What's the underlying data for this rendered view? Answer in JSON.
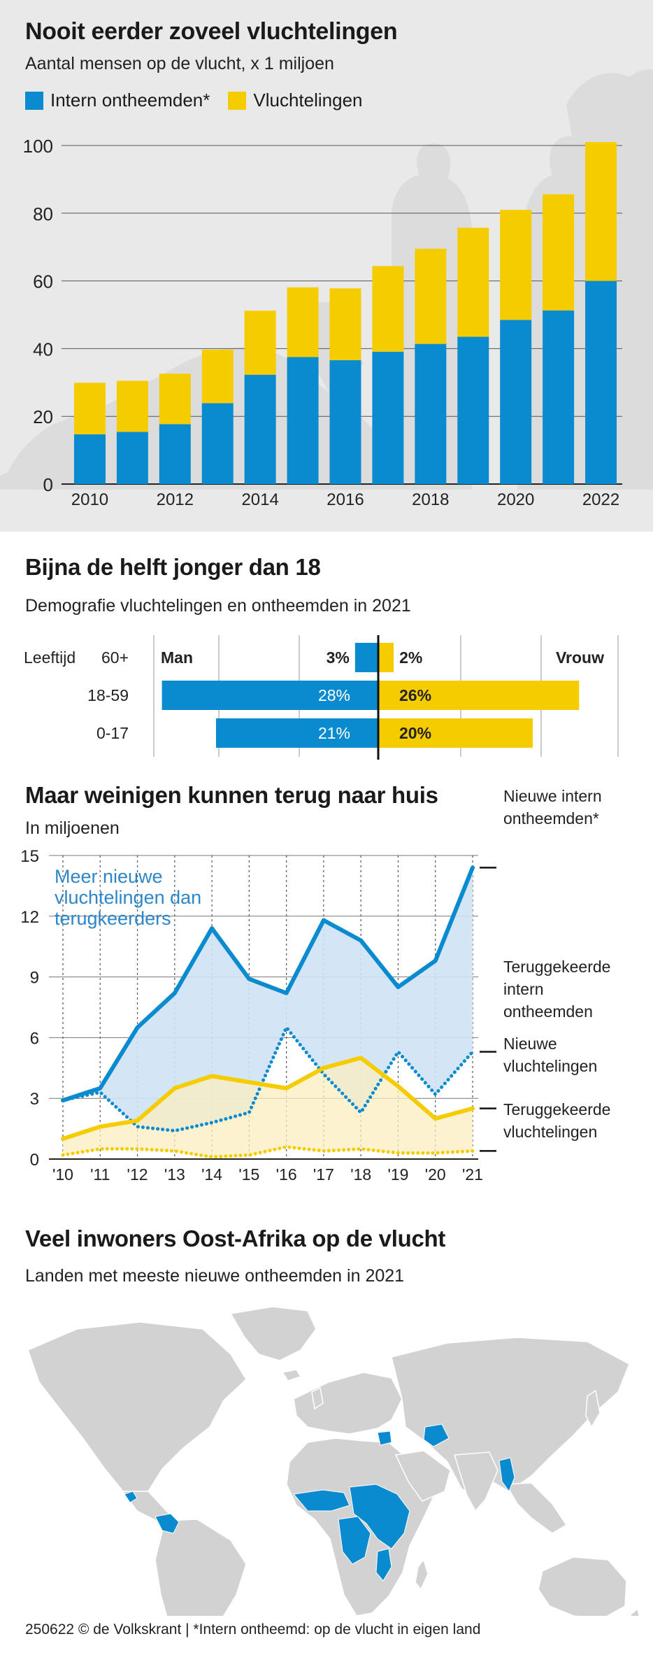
{
  "colors": {
    "blue": "#0a8bd0",
    "yellow": "#f5cc00",
    "gray_bg": "#e9e9e9",
    "map_land": "#d2d2d2"
  },
  "section1": {
    "title": "Nooit eerder zoveel vluchtelingen",
    "subtitle": "Aantal mensen op de vlucht,  x 1 miljoen",
    "legend": [
      "Intern ontheemden*",
      "Vluchtelingen"
    ]
  },
  "section2": {
    "title": "Bijna de helft jonger dan 18",
    "subtitle": "Demografie vluchtelingen en ontheemden in 2021",
    "label_age": "Leeftijd",
    "label_man": "Man",
    "label_vrouw": "Vrouw"
  },
  "section3": {
    "title": "Maar weinigen kunnen terug naar huis",
    "subtitle": "In miljoenen",
    "annotation": [
      "Meer nieuwe",
      "vluchtelingen dan",
      "terugkeerders"
    ]
  },
  "section4": {
    "title": "Veel inwoners Oost-Afrika op de vlucht",
    "subtitle": "Landen met meeste nieuwe ontheemden in 2021"
  },
  "footer": "250622 © de Volkskrant |  *Intern ontheemd: op de vlucht in eigen land",
  "chart_data": [
    {
      "type": "bar",
      "stacked": true,
      "categories": [
        "2010",
        "2011",
        "2012",
        "2013",
        "2014",
        "2015",
        "2016",
        "2017",
        "2018",
        "2019",
        "2020",
        "2021",
        "2022"
      ],
      "x_tick_labels": [
        "2010",
        "2012",
        "2014",
        "2016",
        "2018",
        "2020",
        "2022"
      ],
      "series": [
        {
          "name": "Intern ontheemden*",
          "color": "#0a8bd0",
          "values": [
            14.7,
            15.4,
            17.7,
            23.9,
            32.3,
            37.5,
            36.6,
            39.1,
            41.4,
            43.5,
            48.5,
            51.3,
            60.0
          ]
        },
        {
          "name": "Vluchtelingen",
          "color": "#f5cc00",
          "values": [
            15.2,
            15.1,
            14.9,
            15.8,
            18.9,
            20.6,
            21.2,
            25.3,
            28.1,
            32.2,
            32.5,
            34.3,
            41.0
          ]
        }
      ],
      "ylim": [
        0,
        100
      ],
      "yticks": [
        0,
        20,
        40,
        60,
        80,
        100
      ],
      "grid": true
    },
    {
      "type": "bar",
      "orientation": "horizontal",
      "categories": [
        "60+",
        "18-59",
        "0-17"
      ],
      "series": [
        {
          "name": "Man",
          "color": "#0a8bd0",
          "values": [
            3,
            28,
            21
          ],
          "labels": [
            "3%",
            "28%",
            "21%"
          ]
        },
        {
          "name": "Vrouw",
          "color": "#f5cc00",
          "values": [
            2,
            26,
            20
          ],
          "labels": [
            "2%",
            "26%",
            "20%"
          ]
        }
      ]
    },
    {
      "type": "line",
      "x": [
        "'10",
        "'11",
        "'12",
        "'13",
        "'14",
        "'15",
        "'16",
        "'17",
        "'18",
        "'19",
        "'20",
        "'21"
      ],
      "series": [
        {
          "name": "Nieuwe intern ontheemden*",
          "label_lines": [
            "Nieuwe intern",
            "ontheemden*"
          ],
          "color": "#0a8bd0",
          "style": "solid",
          "values": [
            2.9,
            3.5,
            6.5,
            8.2,
            11.4,
            8.9,
            8.2,
            11.8,
            10.8,
            8.5,
            9.8,
            14.4
          ]
        },
        {
          "name": "Teruggekeerde intern ontheemden",
          "label_lines": [
            "Teruggekeerde",
            "intern",
            "ontheemden"
          ],
          "color": "#0a8bd0",
          "style": "dotted",
          "values": [
            2.9,
            3.3,
            1.6,
            1.4,
            1.8,
            2.3,
            6.5,
            4.2,
            2.3,
            5.3,
            3.2,
            5.3
          ]
        },
        {
          "name": "Nieuwe vluchtelingen",
          "label_lines": [
            "Nieuwe",
            "vluchtelingen"
          ],
          "color": "#f5cc00",
          "style": "solid",
          "values": [
            1.0,
            1.6,
            1.9,
            3.5,
            4.1,
            3.8,
            3.5,
            4.5,
            5.0,
            3.6,
            2.0,
            2.5
          ]
        },
        {
          "name": "Teruggekeerde vluchtelingen",
          "label_lines": [
            "Teruggekeerde",
            "vluchtelingen"
          ],
          "color": "#f5cc00",
          "style": "dotted",
          "values": [
            0.2,
            0.5,
            0.5,
            0.4,
            0.1,
            0.2,
            0.6,
            0.4,
            0.5,
            0.3,
            0.3,
            0.4
          ]
        }
      ],
      "ylim": [
        0,
        15
      ],
      "yticks": [
        0,
        3,
        6,
        9,
        12,
        15
      ],
      "grid": true
    }
  ]
}
